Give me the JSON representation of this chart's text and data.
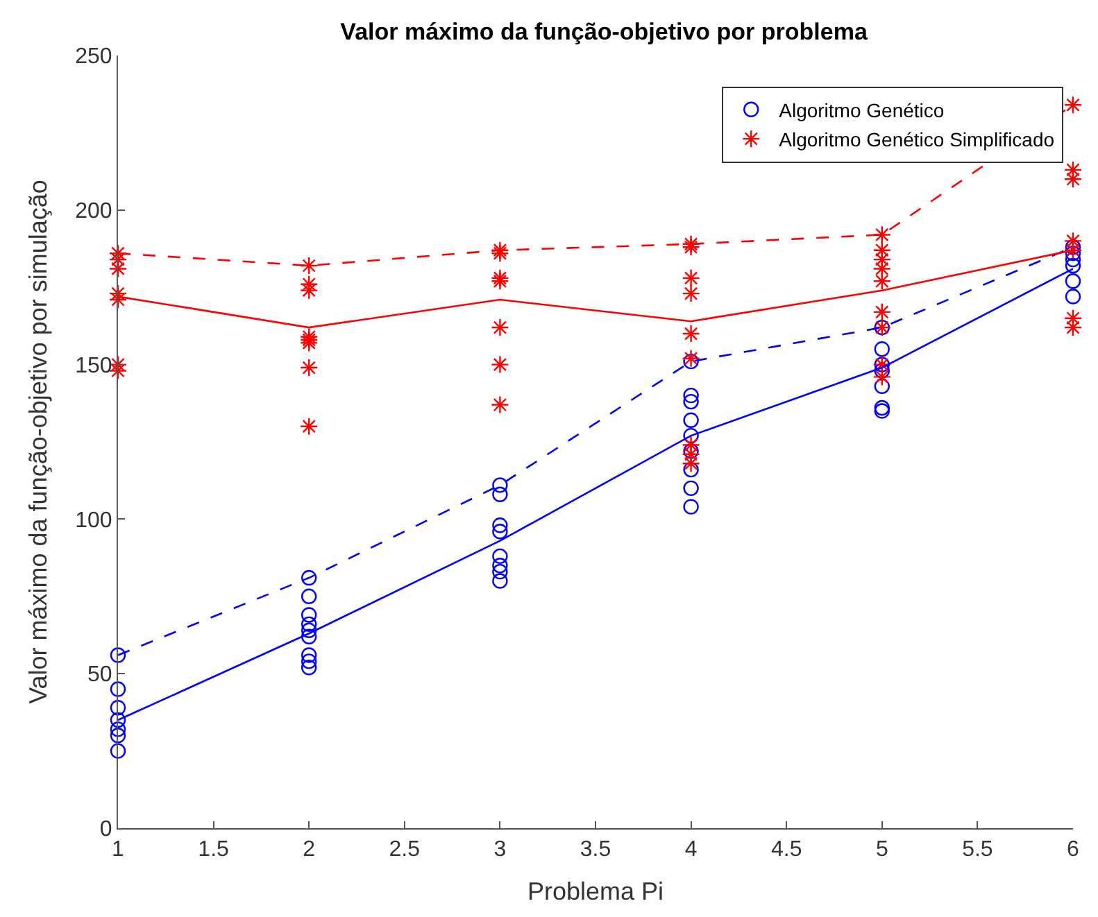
{
  "chart_data": {
    "type": "scatter",
    "title": "Valor máximo da função-objetivo por problema",
    "xlabel": "Problema Pi",
    "ylabel": "Valor máximo da função-objetivo por simulação",
    "xlim": [
      1,
      6
    ],
    "xticks": [
      1,
      1.5,
      2,
      2.5,
      3,
      3.5,
      4,
      4.5,
      5,
      5.5,
      6
    ],
    "ylim": [
      0,
      250
    ],
    "yticks": [
      0,
      50,
      100,
      150,
      200,
      250
    ],
    "legend": "top right",
    "series": [
      {
        "name": "Algoritmo Genético",
        "color": "#0000ff",
        "marker": "circle",
        "x": [
          1,
          1,
          1,
          1,
          1,
          1,
          1,
          2,
          2,
          2,
          2,
          2,
          2,
          2,
          2,
          2,
          3,
          3,
          3,
          3,
          3,
          3,
          3,
          3,
          4,
          4,
          4,
          4,
          4,
          4,
          4,
          4,
          4,
          5,
          5,
          5,
          5,
          5,
          5,
          5,
          6,
          6,
          6,
          6,
          6,
          6
        ],
        "values": [
          56,
          45,
          39,
          35,
          32,
          30,
          25,
          81,
          75,
          69,
          66,
          64,
          62,
          56,
          54,
          52,
          111,
          108,
          98,
          96,
          88,
          85,
          83,
          80,
          151,
          140,
          138,
          132,
          127,
          122,
          116,
          110,
          104,
          162,
          155,
          150,
          148,
          143,
          136,
          135,
          188,
          186,
          184,
          182,
          177,
          172
        ]
      },
      {
        "name": "Algoritmo Genético Simplificado",
        "color": "#ff0000",
        "marker": "cross",
        "x": [
          1,
          1,
          1,
          1,
          1,
          1,
          1,
          2,
          2,
          2,
          2,
          2,
          2,
          2,
          2,
          3,
          3,
          3,
          3,
          3,
          3,
          3,
          4,
          4,
          4,
          4,
          4,
          4,
          4,
          4,
          4,
          5,
          5,
          5,
          5,
          5,
          5,
          5,
          5,
          5,
          6,
          6,
          6,
          6,
          6,
          6,
          6
        ],
        "values": [
          186,
          184,
          181,
          173,
          171,
          150,
          148,
          182,
          176,
          174,
          159,
          158,
          157,
          149,
          130,
          187,
          186,
          178,
          177,
          162,
          150,
          137,
          189,
          188,
          178,
          173,
          160,
          152,
          124,
          121,
          118,
          192,
          187,
          184,
          181,
          177,
          167,
          162,
          150,
          146,
          234,
          213,
          210,
          190,
          187,
          165,
          162
        ]
      },
      {
        "type": "line",
        "color": "#0000ff",
        "line_style": "solid",
        "marker": "none",
        "x": [
          1,
          2,
          3,
          4,
          5,
          6
        ],
        "values": [
          35,
          63,
          93,
          127,
          149,
          181
        ]
      },
      {
        "type": "line",
        "color": "#0000ff",
        "line_style": "dashed",
        "marker": "none",
        "x": [
          1,
          2,
          3,
          4,
          5,
          6
        ],
        "values": [
          56,
          81,
          111,
          151,
          162,
          188
        ]
      },
      {
        "type": "line",
        "color": "#ff0000",
        "line_style": "solid",
        "marker": "none",
        "x": [
          1,
          2,
          3,
          4,
          5,
          6
        ],
        "values": [
          172,
          162,
          171,
          164,
          174,
          187
        ]
      },
      {
        "type": "line",
        "color": "#ff0000",
        "line_style": "dashed",
        "marker": "none",
        "x": [
          1,
          2,
          3,
          4,
          5,
          6
        ],
        "values": [
          186,
          182,
          187,
          189,
          192,
          234
        ]
      }
    ]
  }
}
